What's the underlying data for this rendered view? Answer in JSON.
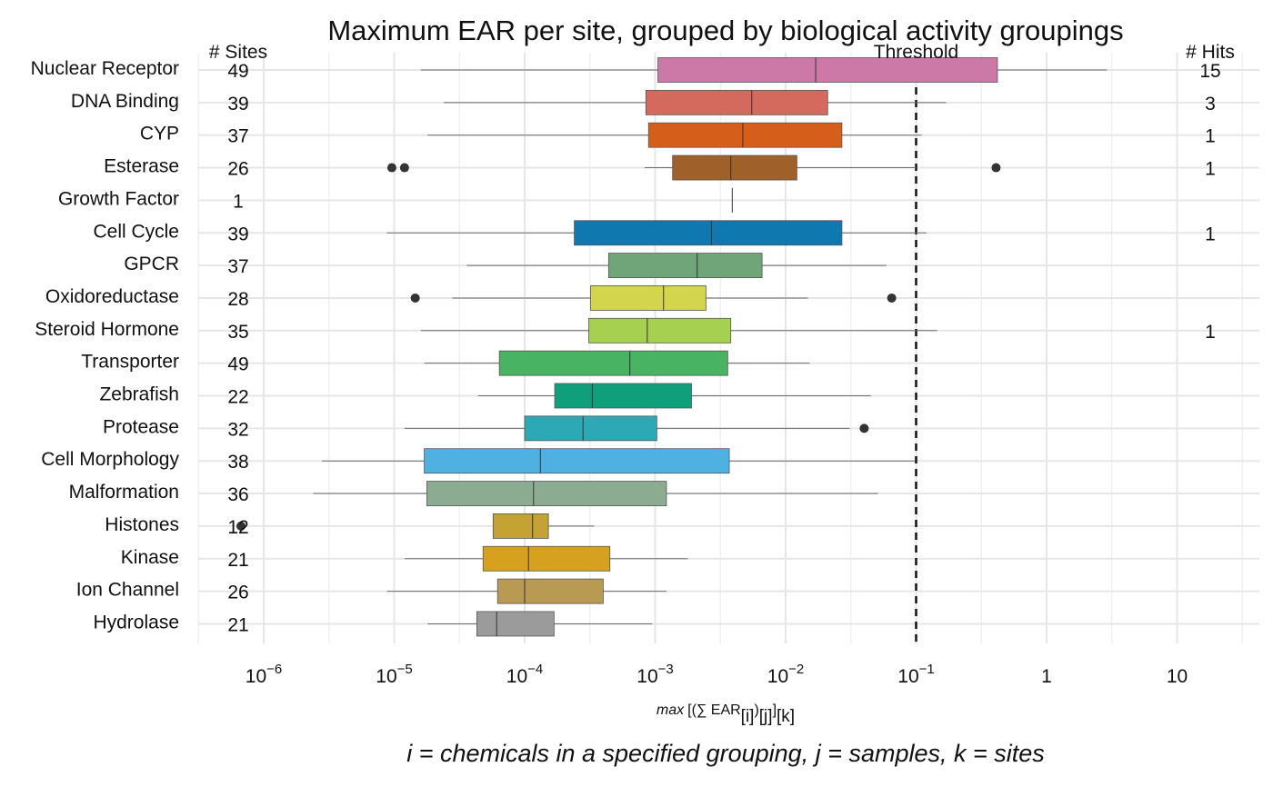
{
  "chart_data": {
    "type": "boxplot",
    "orientation": "horizontal",
    "title": "Maximum EAR per site, grouped by biological activity groupings",
    "xscale": "log10",
    "xlim": [
      5e-07,
      45
    ],
    "x_ticks": [
      {
        "value": 1e-06,
        "base": "10",
        "exp": "−6"
      },
      {
        "value": 1e-05,
        "base": "10",
        "exp": "−5"
      },
      {
        "value": 0.0001,
        "base": "10",
        "exp": "−4"
      },
      {
        "value": 0.001,
        "base": "10",
        "exp": "−3"
      },
      {
        "value": 0.01,
        "base": "10",
        "exp": "−2"
      },
      {
        "value": 0.1,
        "base": "10",
        "exp": "−1"
      },
      {
        "value": 1,
        "base": "1",
        "exp": ""
      },
      {
        "value": 10,
        "base": "10",
        "exp": ""
      }
    ],
    "xlabel": {
      "prefix": "max",
      "open": "[(∑ EAR",
      "sub_i": "[i]",
      "mid": ")",
      "sub_j": "[j]",
      "close": "]",
      "sub_k": "[k]"
    },
    "subtitle": "i = chemicals in a specified grouping, j = samples, k = sites",
    "threshold": {
      "value": 0.1,
      "label": "Threshold"
    },
    "sites_header": "# Sites",
    "hits_header": "# Hits",
    "grid": true,
    "groups": [
      {
        "name": "Nuclear Receptor",
        "sites": "49",
        "hits": "15",
        "color": "#CC79A7",
        "min": 1.6e-05,
        "q1": 0.00105,
        "median": 0.017,
        "q3": 0.42,
        "max": 2.9,
        "outliers": []
      },
      {
        "name": "DNA Binding",
        "sites": "39",
        "hits": "3",
        "color": "#D46A5E",
        "min": 2.4e-05,
        "q1": 0.00085,
        "median": 0.0055,
        "q3": 0.021,
        "max": 0.17,
        "outliers": []
      },
      {
        "name": "CYP",
        "sites": "37",
        "hits": "1",
        "color": "#D55E1A",
        "min": 1.8e-05,
        "q1": 0.00089,
        "median": 0.0047,
        "q3": 0.027,
        "max": 0.11,
        "outliers": []
      },
      {
        "name": "Esterase",
        "sites": "26",
        "hits": "1",
        "color": "#A0602A",
        "min": 0.00083,
        "q1": 0.00136,
        "median": 0.0038,
        "q3": 0.0122,
        "max": 0.1,
        "outliers": [
          9.6e-06,
          1.2e-05,
          0.41
        ]
      },
      {
        "name": "Growth Factor",
        "sites": "1",
        "hits": "",
        "color": "#A0602A",
        "min": 0.0039,
        "q1": 0.0039,
        "median": 0.0039,
        "q3": 0.0039,
        "max": 0.0039,
        "outliers": []
      },
      {
        "name": "Cell Cycle",
        "sites": "39",
        "hits": "1",
        "color": "#0F78AE",
        "min": 8.8e-06,
        "q1": 0.00024,
        "median": 0.0027,
        "q3": 0.027,
        "max": 0.12,
        "outliers": []
      },
      {
        "name": "GPCR",
        "sites": "37",
        "hits": "",
        "color": "#6FA578",
        "min": 3.6e-05,
        "q1": 0.00044,
        "median": 0.0021,
        "q3": 0.0066,
        "max": 0.059,
        "outliers": []
      },
      {
        "name": "Oxidoreductase",
        "sites": "28",
        "hits": "",
        "color": "#D3D64C",
        "min": 2.8e-05,
        "q1": 0.00032,
        "median": 0.00116,
        "q3": 0.00245,
        "max": 0.0148,
        "outliers": [
          1.45e-05,
          0.065
        ]
      },
      {
        "name": "Steroid Hormone",
        "sites": "35",
        "hits": "1",
        "color": "#A6D150",
        "min": 1.6e-05,
        "q1": 0.00031,
        "median": 0.00087,
        "q3": 0.0038,
        "max": 0.145,
        "outliers": []
      },
      {
        "name": "Transporter",
        "sites": "49",
        "hits": "",
        "color": "#47B363",
        "min": 1.7e-05,
        "q1": 6.4e-05,
        "median": 0.00064,
        "q3": 0.0036,
        "max": 0.0153,
        "outliers": []
      },
      {
        "name": "Zebrafish",
        "sites": "22",
        "hits": "",
        "color": "#0FA07B",
        "min": 4.4e-05,
        "q1": 0.00017,
        "median": 0.00033,
        "q3": 0.0019,
        "max": 0.045,
        "outliers": []
      },
      {
        "name": "Protease",
        "sites": "32",
        "hits": "",
        "color": "#2CA9B4",
        "min": 1.2e-05,
        "q1": 0.0001,
        "median": 0.00028,
        "q3": 0.00103,
        "max": 0.031,
        "outliers": [
          0.04
        ]
      },
      {
        "name": "Cell Morphology",
        "sites": "38",
        "hits": "",
        "color": "#4EB1E1",
        "min": 2.8e-06,
        "q1": 1.7e-05,
        "median": 0.000132,
        "q3": 0.0037,
        "max": 0.098,
        "outliers": []
      },
      {
        "name": "Malformation",
        "sites": "36",
        "hits": "",
        "color": "#8BAC91",
        "min": 2.4e-06,
        "q1": 1.78e-05,
        "median": 0.000117,
        "q3": 0.00122,
        "max": 0.051,
        "outliers": []
      },
      {
        "name": "Histones",
        "sites": "12",
        "hits": "",
        "color": "#C4A234",
        "min": 5.73e-05,
        "q1": 5.73e-05,
        "median": 0.000115,
        "q3": 0.000152,
        "max": 0.00034,
        "outliers": [
          6.7e-07
        ]
      },
      {
        "name": "Kinase",
        "sites": "21",
        "hits": "",
        "color": "#D6A11E",
        "min": 1.2e-05,
        "q1": 4.8e-05,
        "median": 0.000107,
        "q3": 0.00045,
        "max": 0.00178,
        "outliers": []
      },
      {
        "name": "Ion Channel",
        "sites": "26",
        "hits": "",
        "color": "#B89A52",
        "min": 8.8e-06,
        "q1": 6.2e-05,
        "median": 0.0001,
        "q3": 0.0004,
        "max": 0.00122,
        "outliers": []
      },
      {
        "name": "Hydrolase",
        "sites": "21",
        "hits": "",
        "color": "#9B9B9B",
        "min": 1.8e-05,
        "q1": 4.3e-05,
        "median": 6.1e-05,
        "q3": 0.000168,
        "max": 0.00095,
        "outliers": []
      }
    ]
  }
}
